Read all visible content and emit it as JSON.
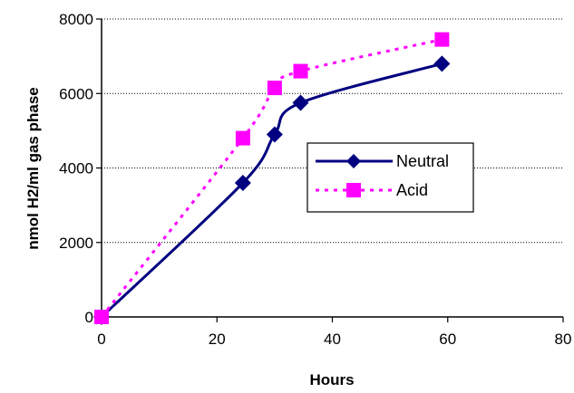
{
  "chart_data": {
    "type": "line",
    "xlabel": "Hours",
    "ylabel": "nmol H2/ml gas phase",
    "xlim": [
      0,
      80
    ],
    "ylim": [
      0,
      8000
    ],
    "x_ticks": [
      0,
      20,
      40,
      60,
      80
    ],
    "y_ticks": [
      0,
      2000,
      4000,
      6000,
      8000
    ],
    "x_tick_labels": [
      "0",
      "20",
      "40",
      "60",
      "80"
    ],
    "y_tick_labels": [
      "0",
      "2000",
      "4000",
      "6000",
      "8000"
    ],
    "grid": "horizontal dotted",
    "legend_position": "right-center",
    "series": [
      {
        "name": "Neutral",
        "color": "#000080",
        "line_style": "solid",
        "marker": "diamond",
        "x": [
          0,
          24.5,
          30,
          34.5,
          59
        ],
        "y": [
          0,
          3600,
          4900,
          5750,
          6800
        ]
      },
      {
        "name": "Acid",
        "color": "#ff00ff",
        "line_style": "dotted",
        "marker": "square",
        "x": [
          0,
          24.5,
          30,
          34.5,
          59
        ],
        "y": [
          0,
          4800,
          6150,
          6600,
          7450
        ]
      }
    ]
  }
}
